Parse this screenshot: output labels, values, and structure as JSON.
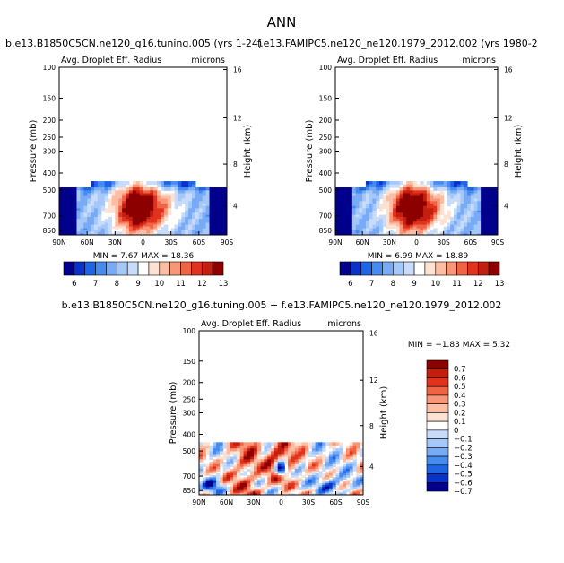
{
  "figure_title": "ANN",
  "chart_data": [
    {
      "type": "heatmap",
      "title": "b.e13.B1850C5CN.ne120_g16.tuning.005 (yrs 1-24)",
      "subtitle_left": "Avg. Droplet Eff. Radius",
      "subtitle_right": "microns",
      "ylabel": "Pressure (mb)",
      "ylabel_right": "Height (km)",
      "x_ticks": [
        "90N",
        "60N",
        "30N",
        "0",
        "30S",
        "60S",
        "90S"
      ],
      "y_ticks": [
        "100",
        "150",
        "200",
        "250",
        "300",
        "400",
        "500",
        "700",
        "850"
      ],
      "y_right_ticks": [
        "16",
        "12",
        "8",
        "4"
      ],
      "ylim": [
        1000,
        100
      ],
      "y_scale": "log",
      "stats": "MIN =    7.67   MAX =   18.36",
      "colorbar_labels": [
        "6",
        "7",
        "8",
        "9",
        "10",
        "11",
        "12",
        "13"
      ],
      "colorbar_orientation": "horizontal"
    },
    {
      "type": "heatmap",
      "title": "f.e13.FAMIPC5.ne120_ne120.1979_2012.002 (yrs 1980-2",
      "subtitle_left": "Avg. Droplet Eff. Radius",
      "subtitle_right": "microns",
      "ylabel": "Pressure (mb)",
      "ylabel_right": "Height (km)",
      "x_ticks": [
        "90N",
        "60N",
        "30N",
        "0",
        "30S",
        "60S",
        "90S"
      ],
      "y_ticks": [
        "100",
        "150",
        "200",
        "250",
        "300",
        "400",
        "500",
        "700",
        "850"
      ],
      "y_right_ticks": [
        "16",
        "12",
        "8",
        "4"
      ],
      "ylim": [
        1000,
        100
      ],
      "y_scale": "log",
      "stats": "MIN =    6.99   MAX =   18.89",
      "colorbar_labels": [
        "6",
        "7",
        "8",
        "9",
        "10",
        "11",
        "12",
        "13"
      ],
      "colorbar_orientation": "horizontal"
    },
    {
      "type": "heatmap",
      "title": "b.e13.B1850C5CN.ne120_g16.tuning.005 − f.e13.FAMIPC5.ne120_ne120.1979_2012.002",
      "subtitle_left": "Avg. Droplet Eff. Radius",
      "subtitle_right": "microns",
      "ylabel": "Pressure (mb)",
      "ylabel_right": "Height (km)",
      "x_ticks": [
        "90N",
        "60N",
        "30N",
        "0",
        "30S",
        "60S",
        "90S"
      ],
      "y_ticks": [
        "100",
        "150",
        "200",
        "250",
        "300",
        "400",
        "500",
        "700",
        "850"
      ],
      "y_right_ticks": [
        "16",
        "12",
        "8",
        "4"
      ],
      "ylim": [
        1000,
        100
      ],
      "y_scale": "log",
      "stats": "MIN =   −1.83   MAX =    5.32",
      "colorbar_labels": [
        "0.7",
        "0.6",
        "0.5",
        "0.4",
        "0.3",
        "0.2",
        "0.1",
        "0",
        "−0.1",
        "−0.2",
        "−0.3",
        "−0.4",
        "−0.5",
        "−0.6",
        "−0.7"
      ],
      "colorbar_orientation": "vertical"
    }
  ],
  "colors": {
    "abs_scale": [
      "#00008c",
      "#0a32c8",
      "#1e64e6",
      "#468cf0",
      "#78aaf5",
      "#a5c8fa",
      "#c8dcfa",
      "#ffffff",
      "#fde1d2",
      "#fbbea5",
      "#f89678",
      "#f06446",
      "#e1321e",
      "#c31e0f",
      "#8c0000"
    ],
    "diff_scale": [
      "#8c0000",
      "#c31e0f",
      "#e1321e",
      "#f06446",
      "#f89678",
      "#fbbea5",
      "#fde1d2",
      "#ffffff",
      "#c8dcfa",
      "#a5c8fa",
      "#78aaf5",
      "#468cf0",
      "#1e64e6",
      "#0a32c8",
      "#00008c"
    ]
  }
}
